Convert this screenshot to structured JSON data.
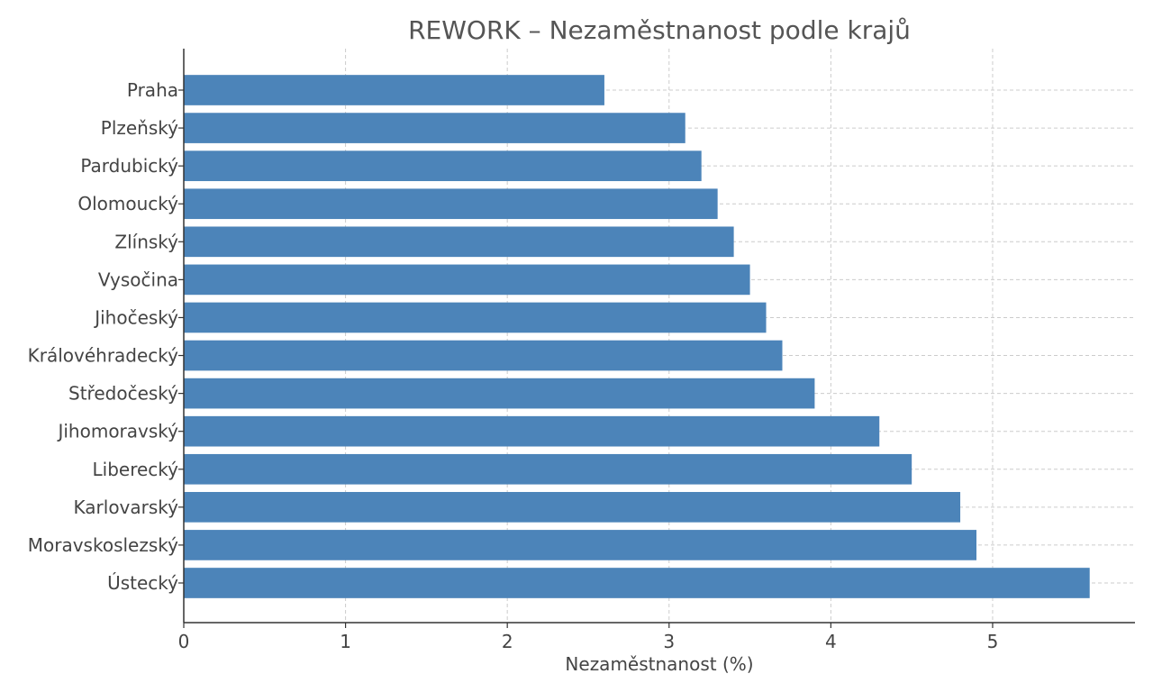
{
  "chart_data": {
    "type": "bar",
    "orientation": "horizontal",
    "title": "REWORK – Nezaměstnanost podle krajů",
    "xlabel": "Nezaměstnanost (%)",
    "ylabel": "",
    "categories": [
      "Praha",
      "Plzeňský",
      "Pardubický",
      "Olomoucký",
      "Zlínský",
      "Vysočina",
      "Jihočeský",
      "Královéhradecký",
      "Středočeský",
      "Jihomoravský",
      "Liberecký",
      "Karlovarský",
      "Moravskoslezský",
      "Ústecký"
    ],
    "values": [
      2.6,
      3.1,
      3.2,
      3.3,
      3.4,
      3.5,
      3.6,
      3.7,
      3.9,
      4.3,
      4.5,
      4.8,
      4.9,
      5.6
    ],
    "xlim": [
      0,
      5.88
    ],
    "xticks": [
      0,
      1,
      2,
      3,
      4,
      5
    ],
    "grid": true,
    "bar_color": "#4c84b9"
  }
}
